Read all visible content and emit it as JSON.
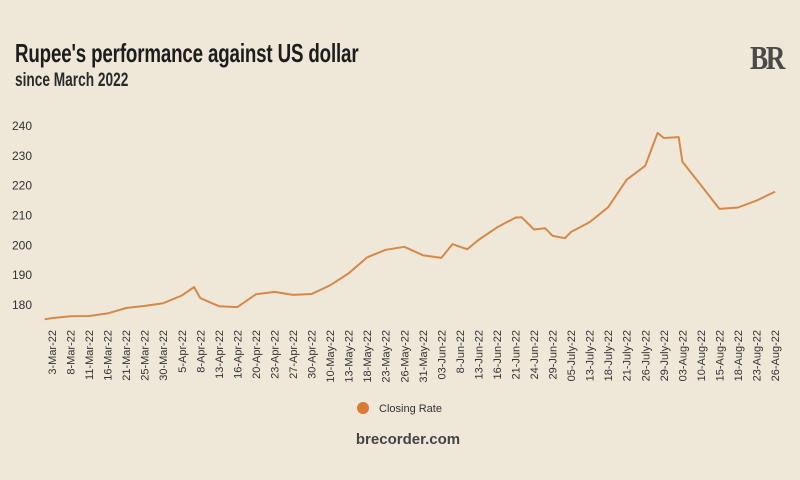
{
  "header": {
    "title": "Rupee's performance against US dollar",
    "subtitle": "since March 2022",
    "logo_text": "BR"
  },
  "footer": {
    "site": "brecorder.com"
  },
  "colors": {
    "background": "#efe8d8",
    "line": "#d4894a",
    "legend_marker": "#dc7a35",
    "text": "#333333"
  },
  "chart_data": {
    "type": "line",
    "title": "Rupee's performance against US dollar",
    "subtitle": "since March 2022",
    "xlabel": "",
    "ylabel": "",
    "ylim": [
      175,
      240
    ],
    "y_ticks": [
      180,
      190,
      200,
      210,
      220,
      230,
      240
    ],
    "grid": false,
    "legend": {
      "position": "bottom",
      "entries": [
        "Closing Rate"
      ]
    },
    "x_tick_labels": [
      "3-Mar-22",
      "8-Mar-22",
      "11-Mar-22",
      "16-Mar-22",
      "21-Mar-22",
      "25-Mar-22",
      "30-Mar-22",
      "5-Apr-22",
      "8-Apr-22",
      "13-Apr-22",
      "16-Apr-22",
      "20-Apr-22",
      "23-Apr-22",
      "27-Apr-22",
      "30-Apr-22",
      "10-May-22",
      "13-May-22",
      "18-May-22",
      "23-May-22",
      "26-May-22",
      "31-May-22",
      "03-Jun-22",
      "8-Jun-22",
      "13-Jun-22",
      "16-Jun-22",
      "21-Jun-22",
      "24-Jun-22",
      "29-Jun-22",
      "05-July-22",
      "13-July-22",
      "18-July-22",
      "21-July-22",
      "26-July-22",
      "29-July-22",
      "03-Aug-22",
      "10-Aug-22",
      "15-Aug-22",
      "18-Aug-22",
      "23-Aug-22",
      "26-Aug-22"
    ],
    "series": [
      {
        "name": "Closing Rate",
        "points": [
          [
            "2022-03-01",
            175.2
          ],
          [
            "2022-03-03",
            175.6
          ],
          [
            "2022-03-08",
            176.2
          ],
          [
            "2022-03-11",
            176.3
          ],
          [
            "2022-03-16",
            177.2
          ],
          [
            "2022-03-21",
            179.0
          ],
          [
            "2022-03-25",
            179.7
          ],
          [
            "2022-03-30",
            180.6
          ],
          [
            "2022-04-05",
            183.2
          ],
          [
            "2022-04-07",
            186.0
          ],
          [
            "2022-04-08",
            182.3
          ],
          [
            "2022-04-13",
            179.6
          ],
          [
            "2022-04-16",
            179.3
          ],
          [
            "2022-04-20",
            183.6
          ],
          [
            "2022-04-23",
            184.4
          ],
          [
            "2022-04-27",
            183.4
          ],
          [
            "2022-04-30",
            183.7
          ],
          [
            "2022-05-10",
            186.6
          ],
          [
            "2022-05-13",
            190.6
          ],
          [
            "2022-05-18",
            196.0
          ],
          [
            "2022-05-23",
            198.5
          ],
          [
            "2022-05-26",
            199.5
          ],
          [
            "2022-05-31",
            196.7
          ],
          [
            "2022-06-03",
            195.8
          ],
          [
            "2022-06-06",
            200.4
          ],
          [
            "2022-06-08",
            199.5
          ],
          [
            "2022-06-10",
            198.7
          ],
          [
            "2022-06-13",
            201.8
          ],
          [
            "2022-06-16",
            206.0
          ],
          [
            "2022-06-21",
            209.3
          ],
          [
            "2022-06-22",
            209.4
          ],
          [
            "2022-06-24",
            205.3
          ],
          [
            "2022-06-27",
            205.7
          ],
          [
            "2022-06-29",
            203.2
          ],
          [
            "2022-07-03",
            202.4
          ],
          [
            "2022-07-05",
            204.5
          ],
          [
            "2022-07-13",
            207.8
          ],
          [
            "2022-07-18",
            212.8
          ],
          [
            "2022-07-21",
            222.0
          ],
          [
            "2022-07-26",
            226.7
          ],
          [
            "2022-07-28",
            237.7
          ],
          [
            "2022-07-29",
            236.0
          ],
          [
            "2022-08-02",
            236.3
          ],
          [
            "2022-08-03",
            228.0
          ],
          [
            "2022-08-10",
            220.2
          ],
          [
            "2022-08-15",
            212.2
          ],
          [
            "2022-08-18",
            212.7
          ],
          [
            "2022-08-23",
            215.0
          ],
          [
            "2022-08-26",
            218.0
          ]
        ]
      }
    ]
  }
}
